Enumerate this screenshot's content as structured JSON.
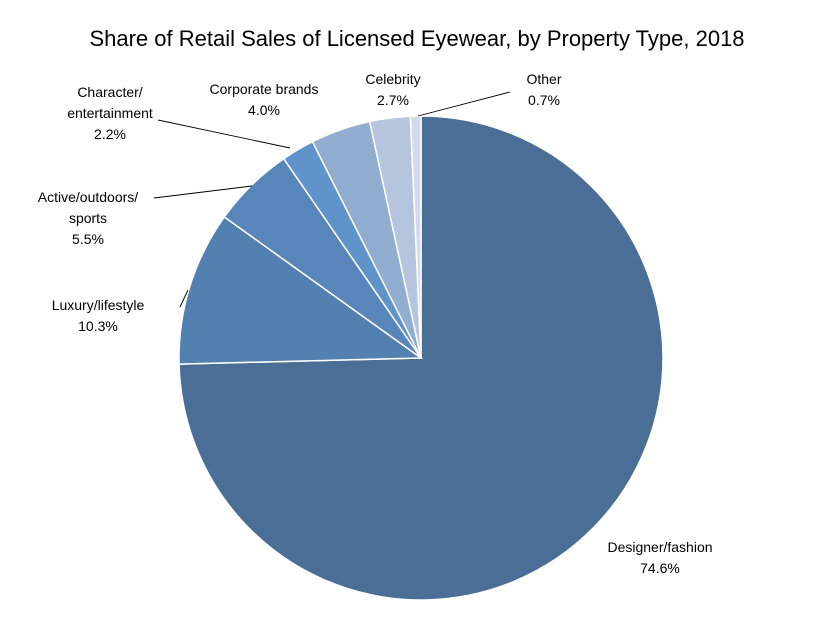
{
  "chart_data": {
    "type": "pie",
    "title": "Share of Retail Sales of Licensed Eyewear, by Property Type, 2018",
    "start_angle_deg": 0,
    "direction": "clockwise",
    "legend": "none",
    "slices": [
      {
        "label": [
          "Designer/fashion"
        ],
        "value": 74.6,
        "value_label": "74.6%",
        "color": "#4A6E96"
      },
      {
        "label": [
          "Luxury/lifestyle"
        ],
        "value": 10.3,
        "value_label": "10.3%",
        "color": "#5280B0"
      },
      {
        "label": [
          "Active/outdoors/",
          "sports"
        ],
        "value": 5.5,
        "value_label": "5.5%",
        "color": "#5886BA"
      },
      {
        "label": [
          "Character/",
          "entertainment"
        ],
        "value": 2.2,
        "value_label": "2.2%",
        "color": "#5F93C9"
      },
      {
        "label": [
          "Corporate brands"
        ],
        "value": 4.0,
        "value_label": "4.0%",
        "color": "#91ADD0"
      },
      {
        "label": [
          "Celebrity"
        ],
        "value": 2.7,
        "value_label": "2.7%",
        "color": "#B5C5DE"
      },
      {
        "label": [
          "Other"
        ],
        "value": 0.7,
        "value_label": "0.7%",
        "color": "#D2DBEA"
      }
    ]
  }
}
